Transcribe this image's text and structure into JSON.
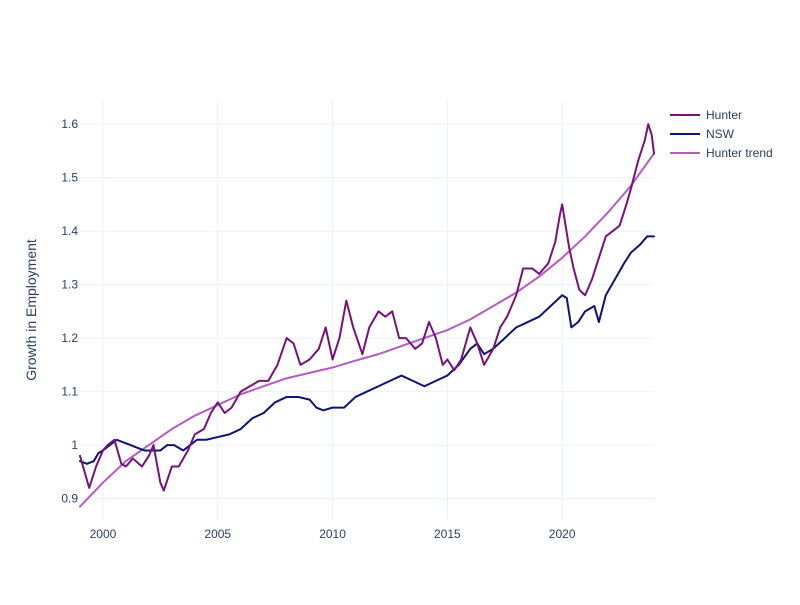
{
  "chart_data": {
    "type": "line",
    "title": "",
    "xlabel": "",
    "ylabel": "Growth in Employment",
    "xlim": [
      1999.0,
      2024.0
    ],
    "ylim": [
      0.86,
      1.645
    ],
    "x_ticks": [
      2000,
      2005,
      2010,
      2015,
      2020
    ],
    "y_ticks": [
      0.9,
      1.0,
      1.1,
      1.2,
      1.3,
      1.4,
      1.5,
      1.6
    ],
    "y_tick_labels": [
      "0.9",
      "1",
      "1.1",
      "1.2",
      "1.3",
      "1.4",
      "1.5",
      "1.6"
    ],
    "grid": true,
    "legend_position": "top-right",
    "series": [
      {
        "name": "Hunter",
        "color": "#78127a",
        "points": [
          [
            1999.0,
            0.98
          ],
          [
            1999.2,
            0.95
          ],
          [
            1999.4,
            0.92
          ],
          [
            1999.7,
            0.96
          ],
          [
            2000.0,
            0.99
          ],
          [
            2000.2,
            1.0
          ],
          [
            2000.5,
            1.01
          ],
          [
            2000.8,
            0.965
          ],
          [
            2001.0,
            0.96
          ],
          [
            2001.3,
            0.975
          ],
          [
            2001.7,
            0.96
          ],
          [
            2002.0,
            0.98
          ],
          [
            2002.2,
            1.0
          ],
          [
            2002.5,
            0.93
          ],
          [
            2002.65,
            0.915
          ],
          [
            2003.0,
            0.96
          ],
          [
            2003.3,
            0.96
          ],
          [
            2003.7,
            0.99
          ],
          [
            2004.0,
            1.02
          ],
          [
            2004.4,
            1.03
          ],
          [
            2004.7,
            1.06
          ],
          [
            2005.0,
            1.08
          ],
          [
            2005.3,
            1.06
          ],
          [
            2005.6,
            1.07
          ],
          [
            2006.0,
            1.1
          ],
          [
            2006.4,
            1.11
          ],
          [
            2006.8,
            1.12
          ],
          [
            2007.2,
            1.12
          ],
          [
            2007.6,
            1.15
          ],
          [
            2008.0,
            1.2
          ],
          [
            2008.3,
            1.19
          ],
          [
            2008.6,
            1.15
          ],
          [
            2009.0,
            1.16
          ],
          [
            2009.4,
            1.18
          ],
          [
            2009.7,
            1.22
          ],
          [
            2010.0,
            1.16
          ],
          [
            2010.3,
            1.2
          ],
          [
            2010.6,
            1.27
          ],
          [
            2010.9,
            1.22
          ],
          [
            2011.3,
            1.17
          ],
          [
            2011.6,
            1.22
          ],
          [
            2012.0,
            1.25
          ],
          [
            2012.3,
            1.24
          ],
          [
            2012.6,
            1.25
          ],
          [
            2012.9,
            1.2
          ],
          [
            2013.2,
            1.2
          ],
          [
            2013.6,
            1.18
          ],
          [
            2013.9,
            1.19
          ],
          [
            2014.2,
            1.23
          ],
          [
            2014.5,
            1.2
          ],
          [
            2014.8,
            1.15
          ],
          [
            2015.0,
            1.16
          ],
          [
            2015.3,
            1.14
          ],
          [
            2015.6,
            1.16
          ],
          [
            2016.0,
            1.22
          ],
          [
            2016.3,
            1.19
          ],
          [
            2016.6,
            1.15
          ],
          [
            2017.0,
            1.18
          ],
          [
            2017.3,
            1.22
          ],
          [
            2017.6,
            1.24
          ],
          [
            2018.0,
            1.28
          ],
          [
            2018.3,
            1.33
          ],
          [
            2018.7,
            1.33
          ],
          [
            2019.0,
            1.32
          ],
          [
            2019.4,
            1.34
          ],
          [
            2019.7,
            1.38
          ],
          [
            2019.9,
            1.43
          ],
          [
            2020.0,
            1.45
          ],
          [
            2020.3,
            1.37
          ],
          [
            2020.5,
            1.33
          ],
          [
            2020.75,
            1.29
          ],
          [
            2021.0,
            1.28
          ],
          [
            2021.3,
            1.31
          ],
          [
            2021.6,
            1.35
          ],
          [
            2021.9,
            1.39
          ],
          [
            2022.2,
            1.4
          ],
          [
            2022.5,
            1.41
          ],
          [
            2022.8,
            1.45
          ],
          [
            2023.0,
            1.48
          ],
          [
            2023.3,
            1.53
          ],
          [
            2023.6,
            1.57
          ],
          [
            2023.75,
            1.6
          ],
          [
            2023.9,
            1.58
          ],
          [
            2024.0,
            1.545
          ]
        ]
      },
      {
        "name": "NSW",
        "color": "#0d1473",
        "points": [
          [
            1999.0,
            0.97
          ],
          [
            1999.3,
            0.965
          ],
          [
            1999.6,
            0.97
          ],
          [
            1999.8,
            0.985
          ],
          [
            2000.0,
            0.99
          ],
          [
            2000.3,
            1.0
          ],
          [
            2000.6,
            1.01
          ],
          [
            2000.9,
            1.005
          ],
          [
            2001.2,
            1.0
          ],
          [
            2001.5,
            0.995
          ],
          [
            2001.8,
            0.99
          ],
          [
            2002.1,
            0.99
          ],
          [
            2002.5,
            0.99
          ],
          [
            2002.8,
            1.0
          ],
          [
            2003.1,
            1.0
          ],
          [
            2003.5,
            0.99
          ],
          [
            2003.8,
            1.0
          ],
          [
            2004.1,
            1.01
          ],
          [
            2004.5,
            1.01
          ],
          [
            2005.0,
            1.015
          ],
          [
            2005.5,
            1.02
          ],
          [
            2006.0,
            1.03
          ],
          [
            2006.5,
            1.05
          ],
          [
            2007.0,
            1.06
          ],
          [
            2007.5,
            1.08
          ],
          [
            2008.0,
            1.09
          ],
          [
            2008.5,
            1.09
          ],
          [
            2009.0,
            1.085
          ],
          [
            2009.3,
            1.07
          ],
          [
            2009.6,
            1.065
          ],
          [
            2010.0,
            1.07
          ],
          [
            2010.5,
            1.07
          ],
          [
            2011.0,
            1.09
          ],
          [
            2011.5,
            1.1
          ],
          [
            2012.0,
            1.11
          ],
          [
            2012.5,
            1.12
          ],
          [
            2013.0,
            1.13
          ],
          [
            2013.5,
            1.12
          ],
          [
            2014.0,
            1.11
          ],
          [
            2014.5,
            1.12
          ],
          [
            2015.0,
            1.13
          ],
          [
            2015.5,
            1.15
          ],
          [
            2016.0,
            1.18
          ],
          [
            2016.3,
            1.19
          ],
          [
            2016.6,
            1.17
          ],
          [
            2017.0,
            1.18
          ],
          [
            2017.5,
            1.2
          ],
          [
            2018.0,
            1.22
          ],
          [
            2018.5,
            1.23
          ],
          [
            2019.0,
            1.24
          ],
          [
            2019.5,
            1.26
          ],
          [
            2020.0,
            1.28
          ],
          [
            2020.2,
            1.275
          ],
          [
            2020.4,
            1.22
          ],
          [
            2020.7,
            1.23
          ],
          [
            2021.0,
            1.25
          ],
          [
            2021.4,
            1.26
          ],
          [
            2021.6,
            1.23
          ],
          [
            2021.9,
            1.28
          ],
          [
            2022.3,
            1.31
          ],
          [
            2022.7,
            1.34
          ],
          [
            2023.0,
            1.36
          ],
          [
            2023.4,
            1.375
          ],
          [
            2023.7,
            1.39
          ],
          [
            2024.0,
            1.39
          ]
        ]
      },
      {
        "name": "Hunter trend",
        "color": "#b55ac6",
        "points": [
          [
            1999.0,
            0.885
          ],
          [
            2000.0,
            0.93
          ],
          [
            2001.0,
            0.97
          ],
          [
            2002.0,
            1.0
          ],
          [
            2003.0,
            1.03
          ],
          [
            2004.0,
            1.055
          ],
          [
            2005.0,
            1.075
          ],
          [
            2006.0,
            1.095
          ],
          [
            2007.0,
            1.11
          ],
          [
            2008.0,
            1.125
          ],
          [
            2009.0,
            1.135
          ],
          [
            2010.0,
            1.145
          ],
          [
            2011.0,
            1.158
          ],
          [
            2012.0,
            1.17
          ],
          [
            2013.0,
            1.185
          ],
          [
            2014.0,
            1.2
          ],
          [
            2015.0,
            1.215
          ],
          [
            2016.0,
            1.235
          ],
          [
            2017.0,
            1.26
          ],
          [
            2018.0,
            1.285
          ],
          [
            2019.0,
            1.315
          ],
          [
            2020.0,
            1.35
          ],
          [
            2021.0,
            1.39
          ],
          [
            2022.0,
            1.435
          ],
          [
            2023.0,
            1.485
          ],
          [
            2024.0,
            1.545
          ]
        ]
      }
    ]
  }
}
